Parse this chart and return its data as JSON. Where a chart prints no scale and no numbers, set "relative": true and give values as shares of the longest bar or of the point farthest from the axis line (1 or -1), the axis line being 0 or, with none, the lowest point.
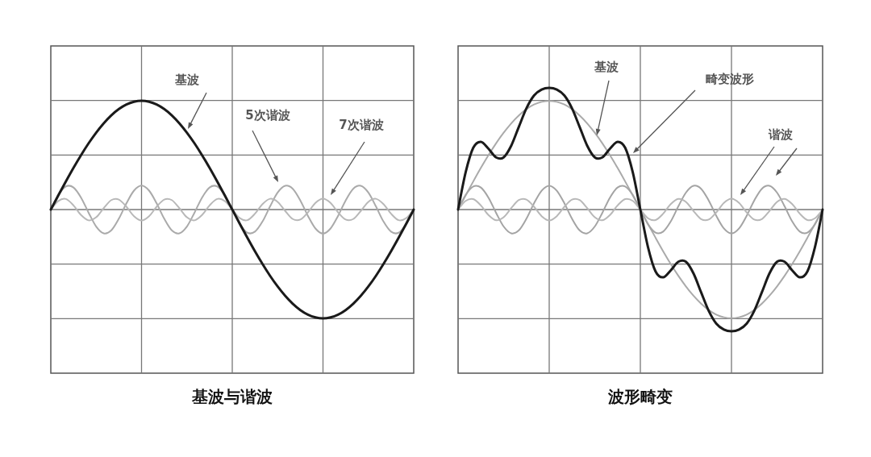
{
  "chart_data": [
    {
      "type": "line",
      "relative": true,
      "grid": true,
      "xlabel": "基波与谐波",
      "annotations": [
        "基波",
        "5次谐波",
        "7次谐波"
      ],
      "categories": [
        null,
        null,
        null,
        null,
        null,
        null,
        null,
        null,
        null,
        null,
        null,
        null,
        null,
        null,
        null,
        null,
        null,
        null,
        null,
        null,
        null,
        null,
        null,
        null,
        null,
        null,
        null,
        null,
        null,
        null,
        null,
        null,
        null,
        null,
        null,
        null,
        null,
        null,
        null,
        null,
        null,
        null,
        null,
        null,
        null,
        null,
        null,
        null,
        null
      ],
      "series": [
        {
          "color": "#aaaaaa",
          "values": [
            0,
            0.134,
            0.213,
            0.203,
            0.11,
            -0.029,
            -0.156,
            -0.218,
            -0.191,
            -0.084,
            0.057,
            0.174,
            0.22,
            0.174,
            0.057,
            -0.084,
            -0.191,
            -0.218,
            -0.156,
            -0.029,
            0.11,
            0.203,
            0.213,
            0.134,
            0,
            -0.134,
            -0.213,
            -0.203,
            -0.11,
            0.029,
            0.156,
            0.218,
            0.191,
            0.084,
            -0.057,
            -0.174,
            -0.22,
            -0.174,
            -0.057,
            0.084,
            0.191,
            0.218,
            0.156,
            0.029,
            -0.11,
            -0.203,
            -0.213,
            -0.134,
            0
          ]
        },
        {
          "color": "#b8b8b8",
          "values": [
            0,
            0.079,
            0.097,
            0.038,
            -0.05,
            -0.099,
            -0.071,
            0.013,
            0.087,
            0.092,
            0.026,
            -0.061,
            -0.1,
            -0.061,
            0.026,
            0.092,
            0.087,
            0.013,
            -0.071,
            -0.099,
            -0.05,
            0.038,
            0.097,
            0.079,
            0,
            -0.079,
            -0.097,
            -0.038,
            0.05,
            0.099,
            0.071,
            -0.013,
            -0.087,
            -0.092,
            -0.026,
            0.061,
            0.1,
            0.061,
            -0.026,
            -0.092,
            -0.087,
            -0.013,
            0.071,
            0.099,
            0.05,
            -0.038,
            -0.097,
            -0.079,
            0
          ]
        },
        {
          "color": "#1a1a1a",
          "values": [
            0,
            0.131,
            0.259,
            0.383,
            0.5,
            0.609,
            0.707,
            0.793,
            0.866,
            0.924,
            0.966,
            0.991,
            1,
            0.991,
            0.966,
            0.924,
            0.866,
            0.793,
            0.707,
            0.609,
            0.5,
            0.383,
            0.259,
            0.131,
            0,
            -0.131,
            -0.259,
            -0.383,
            -0.5,
            -0.609,
            -0.707,
            -0.793,
            -0.866,
            -0.924,
            -0.966,
            -0.991,
            -1,
            -0.991,
            -0.966,
            -0.924,
            -0.866,
            -0.793,
            -0.707,
            -0.609,
            -0.5,
            -0.383,
            -0.259,
            -0.131,
            0
          ]
        }
      ]
    },
    {
      "type": "line",
      "relative": true,
      "grid": true,
      "xlabel": "波形畸变",
      "annotations": [
        "基波",
        "畸变波形",
        "谐波"
      ],
      "categories": [
        null,
        null,
        null,
        null,
        null,
        null,
        null,
        null,
        null,
        null,
        null,
        null,
        null,
        null,
        null,
        null,
        null,
        null,
        null,
        null,
        null,
        null,
        null,
        null,
        null,
        null,
        null,
        null,
        null,
        null,
        null,
        null,
        null,
        null,
        null,
        null,
        null,
        null,
        null,
        null,
        null,
        null,
        null,
        null,
        null,
        null,
        null,
        null,
        null
      ],
      "series": [
        {
          "color": "#aaaaaa",
          "values": [
            0,
            0.117,
            0.231,
            0.342,
            0.447,
            0.544,
            0.631,
            0.708,
            0.773,
            0.825,
            0.863,
            0.885,
            0.893,
            0.885,
            0.863,
            0.825,
            0.773,
            0.708,
            0.631,
            0.544,
            0.447,
            0.342,
            0.231,
            0.117,
            0,
            -0.117,
            -0.231,
            -0.342,
            -0.447,
            -0.544,
            -0.631,
            -0.708,
            -0.773,
            -0.825,
            -0.863,
            -0.885,
            -0.893,
            -0.885,
            -0.863,
            -0.825,
            -0.773,
            -0.708,
            -0.631,
            -0.544,
            -0.447,
            -0.342,
            -0.231,
            -0.117,
            0
          ]
        },
        {
          "color": "#a4a4a4",
          "values": [
            0,
            0.12,
            0.19,
            0.181,
            0.098,
            -0.026,
            -0.139,
            -0.195,
            -0.171,
            -0.075,
            0.051,
            0.155,
            0.196,
            0.155,
            0.051,
            -0.075,
            -0.171,
            -0.195,
            -0.139,
            -0.026,
            0.098,
            0.181,
            0.19,
            0.12,
            0,
            -0.12,
            -0.19,
            -0.181,
            -0.098,
            0.026,
            0.139,
            0.195,
            0.171,
            0.075,
            -0.051,
            -0.155,
            -0.196,
            -0.155,
            -0.051,
            0.075,
            0.171,
            0.195,
            0.139,
            0.026,
            -0.098,
            -0.181,
            -0.19,
            -0.12,
            0
          ]
        },
        {
          "color": "#b8b8b8",
          "values": [
            0,
            0.071,
            0.086,
            0.034,
            -0.045,
            -0.088,
            -0.063,
            0.012,
            0.078,
            0.082,
            0.023,
            -0.054,
            -0.089,
            -0.054,
            0.023,
            0.082,
            0.078,
            0.012,
            -0.063,
            -0.088,
            -0.045,
            0.034,
            0.086,
            0.071,
            0,
            -0.071,
            -0.086,
            -0.034,
            0.045,
            0.088,
            0.063,
            -0.012,
            -0.078,
            -0.082,
            -0.023,
            0.054,
            0.089,
            0.054,
            -0.023,
            -0.082,
            -0.078,
            -0.012,
            0.063,
            0.088,
            0.045,
            -0.034,
            -0.086,
            -0.071,
            0
          ]
        },
        {
          "color": "#1a1a1a",
          "values": [
            0,
            0.307,
            0.508,
            0.557,
            0.5,
            0.429,
            0.429,
            0.525,
            0.68,
            0.832,
            0.937,
            0.986,
            1,
            0.986,
            0.937,
            0.832,
            0.68,
            0.525,
            0.429,
            0.429,
            0.5,
            0.557,
            0.508,
            0.307,
            0,
            -0.307,
            -0.508,
            -0.557,
            -0.5,
            -0.429,
            -0.429,
            -0.525,
            -0.68,
            -0.832,
            -0.937,
            -0.986,
            -1,
            -0.986,
            -0.937,
            -0.832,
            -0.68,
            -0.525,
            -0.429,
            -0.429,
            -0.5,
            -0.557,
            -0.508,
            -0.307,
            0
          ]
        }
      ]
    }
  ]
}
